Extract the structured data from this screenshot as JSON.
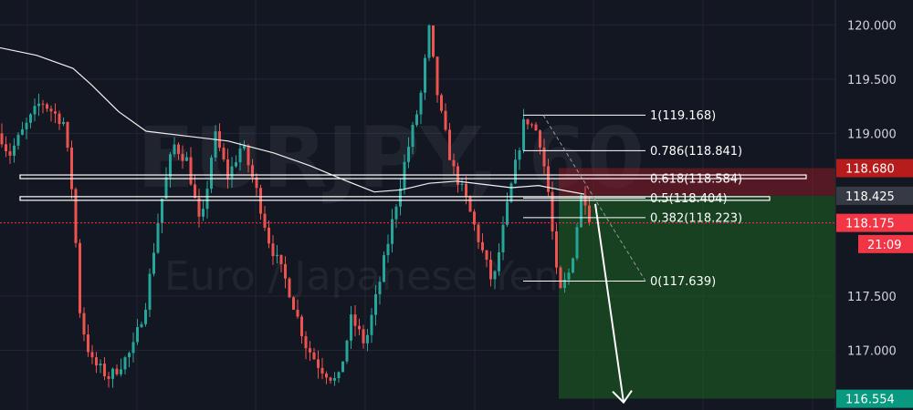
{
  "watermark": {
    "symbol": "EURJPY, 60",
    "description": "Euro / Japanese Yen"
  },
  "colors": {
    "background": "#131722",
    "grid": "#232632",
    "up": "#26a69a",
    "down": "#ef5350",
    "ma": "#f0f0f0",
    "fib": "#ffffff",
    "stop_zone": "#8a1c24",
    "target_zone": "#1b5e20",
    "current_price": "#f23645",
    "target_tag": "#089981",
    "level_tag": "#363a45"
  },
  "chart_data": {
    "type": "candlestick",
    "y_range": [
      116.45,
      120.23
    ],
    "y_ticks": [
      "120.000",
      "119.500",
      "119.000",
      "117.500",
      "117.000"
    ],
    "fib_levels": [
      {
        "ratio": "1",
        "price": 119.168,
        "label": "1(119.168)"
      },
      {
        "ratio": "0.786",
        "price": 118.841,
        "label": "0.786(118.841)"
      },
      {
        "ratio": "0.618",
        "price": 118.584,
        "label": "0.618(118.584)"
      },
      {
        "ratio": "0.5",
        "price": 118.404,
        "label": "0.5(118.404)"
      },
      {
        "ratio": "0.382",
        "price": 118.223,
        "label": "0.382(118.223)"
      },
      {
        "ratio": "0",
        "price": 117.639,
        "label": "0(117.639)"
      }
    ],
    "price_tags": [
      {
        "id": "stop",
        "text": "118.680",
        "price": 118.68,
        "kind": "stop"
      },
      {
        "id": "entry",
        "text": "118.425",
        "price": 118.425,
        "kind": "level"
      },
      {
        "id": "current",
        "text": "118.175",
        "price": 118.175,
        "kind": "current"
      },
      {
        "id": "countdown",
        "text": "21:09",
        "price": 117.98,
        "kind": "current"
      },
      {
        "id": "target",
        "text": "116.554",
        "price": 116.554,
        "kind": "target"
      }
    ],
    "horizontal_lines": [
      118.6,
      118.4
    ],
    "current_price": 118.175,
    "position": {
      "entry": 118.425,
      "stop": 118.68,
      "target": 116.554,
      "direction": "short"
    }
  }
}
